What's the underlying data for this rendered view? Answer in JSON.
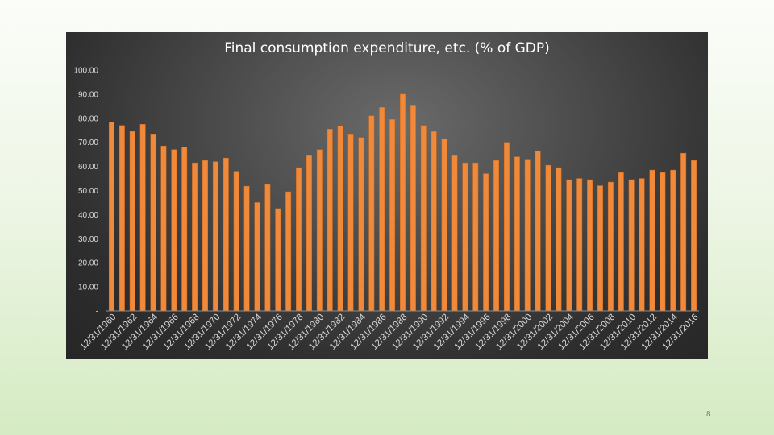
{
  "slide": {
    "page_number": "8"
  },
  "colors": {
    "bar": "#f08a3a",
    "bar_edge": "#c96a22",
    "axis_text": "#d9d9d9",
    "title": "#ffffff"
  },
  "chart_data": {
    "type": "bar",
    "title": "Final consumption expenditure, etc. (% of GDP)",
    "xlabel": "",
    "ylabel": "",
    "ylim": [
      0,
      100
    ],
    "y_ticks": [
      "-",
      "10.00",
      "20.00",
      "30.00",
      "40.00",
      "50.00",
      "60.00",
      "70.00",
      "80.00",
      "90.00",
      "100.00"
    ],
    "grid": false,
    "x_tick_labels": [
      "12/31/1960",
      "12/31/1962",
      "12/31/1964",
      "12/31/1966",
      "12/31/1968",
      "12/31/1970",
      "12/31/1972",
      "12/31/1974",
      "12/31/1976",
      "12/31/1978",
      "12/31/1980",
      "12/31/1982",
      "12/31/1984",
      "12/31/1986",
      "12/31/1988",
      "12/31/1990",
      "12/31/1992",
      "12/31/1994",
      "12/31/1996",
      "12/31/1998",
      "12/31/2000",
      "12/31/2002",
      "12/31/2004",
      "12/31/2006",
      "12/31/2008",
      "12/31/2010",
      "12/31/2012",
      "12/31/2014",
      "12/31/2016"
    ],
    "categories": [
      "12/31/1960",
      "12/31/1961",
      "12/31/1962",
      "12/31/1963",
      "12/31/1964",
      "12/31/1965",
      "12/31/1966",
      "12/31/1967",
      "12/31/1968",
      "12/31/1969",
      "12/31/1970",
      "12/31/1971",
      "12/31/1972",
      "12/31/1973",
      "12/31/1974",
      "12/31/1975",
      "12/31/1976",
      "12/31/1977",
      "12/31/1978",
      "12/31/1979",
      "12/31/1980",
      "12/31/1981",
      "12/31/1982",
      "12/31/1983",
      "12/31/1984",
      "12/31/1985",
      "12/31/1986",
      "12/31/1987",
      "12/31/1988",
      "12/31/1989",
      "12/31/1990",
      "12/31/1991",
      "12/31/1992",
      "12/31/1993",
      "12/31/1994",
      "12/31/1995",
      "12/31/1996",
      "12/31/1997",
      "12/31/1998",
      "12/31/1999",
      "12/31/2000",
      "12/31/2001",
      "12/31/2002",
      "12/31/2003",
      "12/31/2004",
      "12/31/2005",
      "12/31/2006",
      "12/31/2007",
      "12/31/2008",
      "12/31/2009",
      "12/31/2010",
      "12/31/2011",
      "12/31/2012",
      "12/31/2013",
      "12/31/2014",
      "12/31/2015",
      "12/31/2016"
    ],
    "values": [
      78.5,
      77,
      74.5,
      77.5,
      73.5,
      68.5,
      67,
      68,
      61.5,
      62.5,
      62,
      63.5,
      58,
      51.8,
      45,
      52.5,
      42.5,
      49.5,
      59.5,
      64.5,
      67,
      75.5,
      76.8,
      73.5,
      72,
      81,
      84.5,
      79.5,
      90,
      85.5,
      77,
      74.5,
      71.5,
      64.5,
      61.5,
      61.5,
      57,
      62.5,
      70,
      64,
      63,
      66.5,
      60.5,
      59.5,
      54.5,
      55,
      54.5,
      52,
      53.5,
      57.5,
      54.5,
      55,
      58.5,
      57.5,
      58.5,
      65.5,
      62.5
    ]
  }
}
